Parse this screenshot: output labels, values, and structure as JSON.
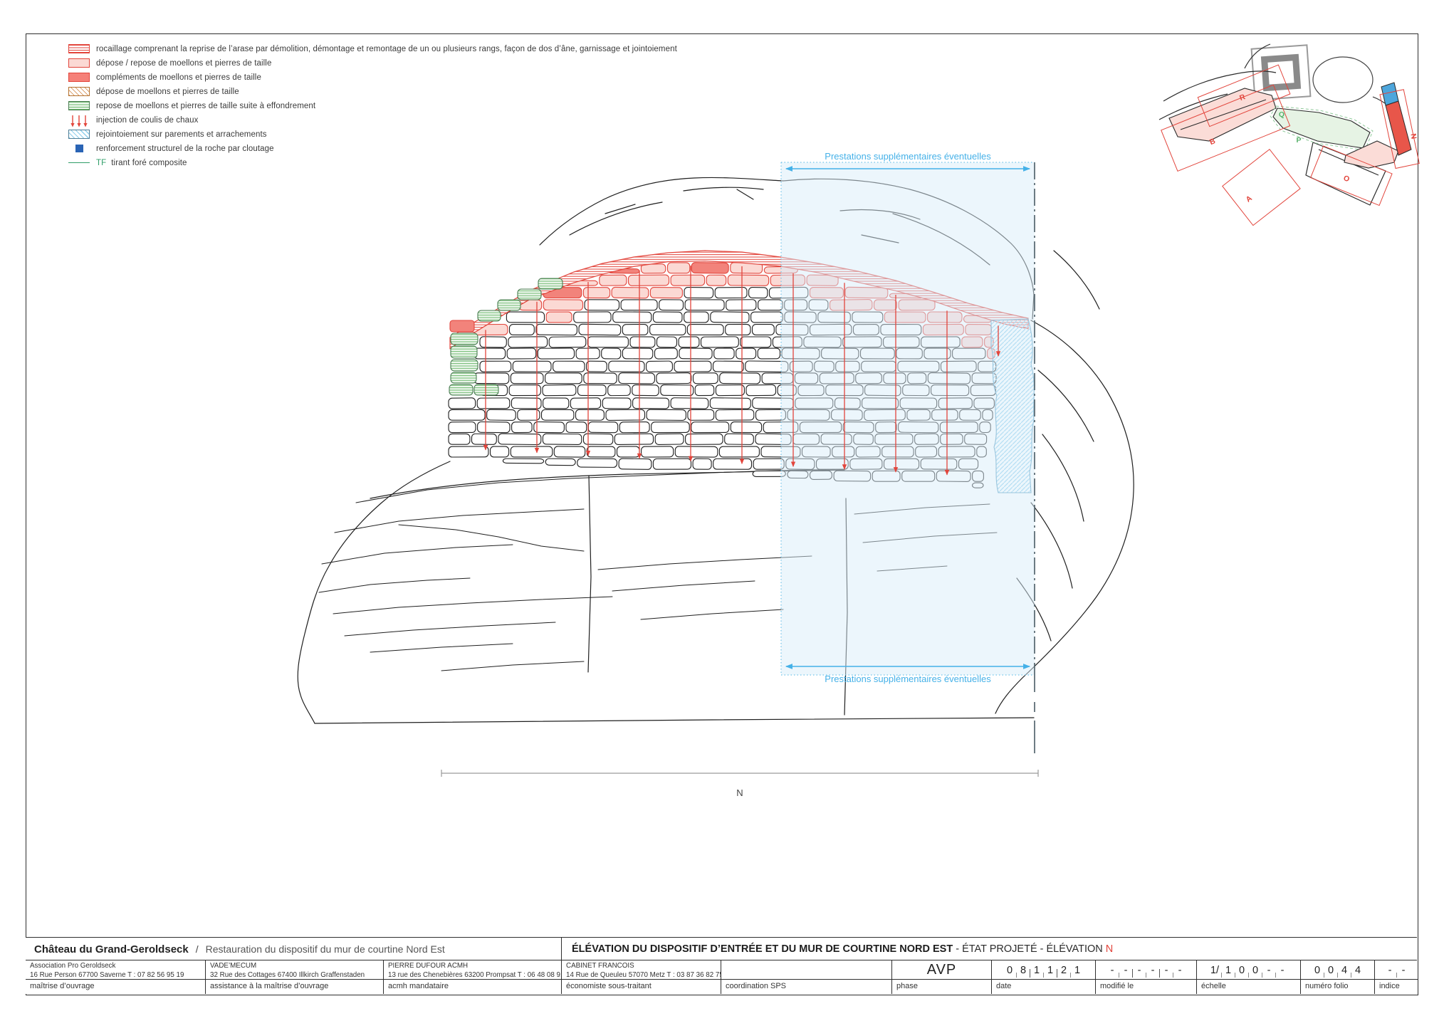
{
  "legend": {
    "items": [
      {
        "id": "rocaillage",
        "swatch": "red-stripes",
        "label": "rocaillage comprenant la reprise de l’arase par démolition, démontage et remontage de un ou plusieurs rangs, façon de dos d’âne, garnissage et jointoiement"
      },
      {
        "id": "depose-repose",
        "swatch": "pink-fill",
        "label": "dépose / repose de moellons et pierres de taille"
      },
      {
        "id": "complements",
        "swatch": "red-fill",
        "label": "compléments de moellons et pierres de taille"
      },
      {
        "id": "depose",
        "swatch": "orange-hatch",
        "label": "dépose de moellons et pierres de taille"
      },
      {
        "id": "repose-effondrement",
        "swatch": "green-stripes",
        "label": "repose de moellons et pierres de taille suite à effondrement"
      },
      {
        "id": "injection",
        "swatch": "red-arrows",
        "label": "injection de coulis de chaux"
      },
      {
        "id": "rejointoiement",
        "swatch": "blue-hatch",
        "label": "rejointoiement sur parements et arrachements"
      },
      {
        "id": "renforcement",
        "swatch": "blue-square",
        "label": "renforcement structurel de la roche par cloutage"
      },
      {
        "id": "tirant",
        "swatch": "tf-line",
        "tf": "TF",
        "label": "tirant foré composite"
      }
    ]
  },
  "drawing": {
    "supplementary_note_top": "Prestations supplémentaires éventuelles",
    "supplementary_note_bottom": "Prestations supplémentaires éventuelles",
    "axis_label": "N",
    "colors": {
      "red": "#e2453c",
      "pink": "#fbd9d4",
      "dark_pink": "#f2837b",
      "green_edge": "#4a7c52",
      "green_line": "#6cb86c",
      "blue_hatch": "#8ecfec",
      "hatch_edge": "#5a9cc0",
      "overlay_fill": "#d9edf9",
      "overlay_edge": "#6fc2ea",
      "overlay_dark_edge": "#54656e",
      "annotation_blue": "#45b1e8",
      "axis_grey": "#9a9a9a",
      "ink": "#1f1f1f",
      "nail_blue": "#2a64b5",
      "tf_green": "#2f9e68"
    }
  },
  "site_map": {
    "labels": [
      {
        "text": "R",
        "color": "#e2453c"
      },
      {
        "text": "Q",
        "color": "#57b26a"
      },
      {
        "text": "P",
        "color": "#57b26a"
      },
      {
        "text": "B",
        "color": "#e2453c"
      },
      {
        "text": "A",
        "color": "#e2453c"
      },
      {
        "text": "O",
        "color": "#e2453c"
      },
      {
        "text": "N",
        "color": "#e2453c"
      }
    ]
  },
  "title_block": {
    "project": "Château du Grand-Geroldseck",
    "separator": "/",
    "project_subtitle": "Restauration du dispositif du mur de courtine Nord Est",
    "sheet_title_bold": "ÉLÉVATION DU DISPOSITIF D’ENTRÉE ET DU MUR DE COURTINE NORD EST",
    "sheet_title_rest": " - ÉTAT PROJETÉ - ÉLÉVATION ",
    "sheet_title_letter": "N",
    "companies": [
      {
        "line1": "Association Pro Geroldseck",
        "line2": "16 Rue Person    67700 Saverne    T : 07 82 56 95 19",
        "role": "maîtrise d’ouvrage"
      },
      {
        "line1": "VADE’MECUM",
        "line2": "32 Rue des Cottages   67400 Illkirch Graffenstaden",
        "role": "assistance à la maîtrise d’ouvrage"
      },
      {
        "line1": "PIERRE DUFOUR ACMH",
        "line2": "13 rue des Chenebières   63200 Prompsat   T : 06 48 08 91 90",
        "role": "acmh mandataire"
      },
      {
        "line1": "CABINET FRANCOIS",
        "line2": "14 Rue de Queuleu      57070 Metz     T : 03 87 36 82 75",
        "role": "économiste sous-traitant"
      },
      {
        "line1": "",
        "line2": "",
        "role": "coordination SPS"
      }
    ],
    "phase": {
      "value": "AVP",
      "label": "phase"
    },
    "boxes": [
      {
        "digits": [
          "0",
          "8",
          "1",
          "1",
          "2",
          "1"
        ],
        "pairs": true,
        "label": "date"
      },
      {
        "digits": [
          "-",
          "-",
          "-",
          "-",
          "-",
          "-"
        ],
        "pairs": true,
        "label": "modifié le"
      },
      {
        "digits": [
          "1/",
          "1",
          "0",
          "0",
          "-",
          "-"
        ],
        "pairs": false,
        "label": "échelle"
      },
      {
        "digits": [
          "0",
          "0",
          "4",
          "4"
        ],
        "pairs": false,
        "label": "numéro folio"
      },
      {
        "digits": [
          "-",
          "-"
        ],
        "pairs": false,
        "label": "indice"
      }
    ]
  }
}
